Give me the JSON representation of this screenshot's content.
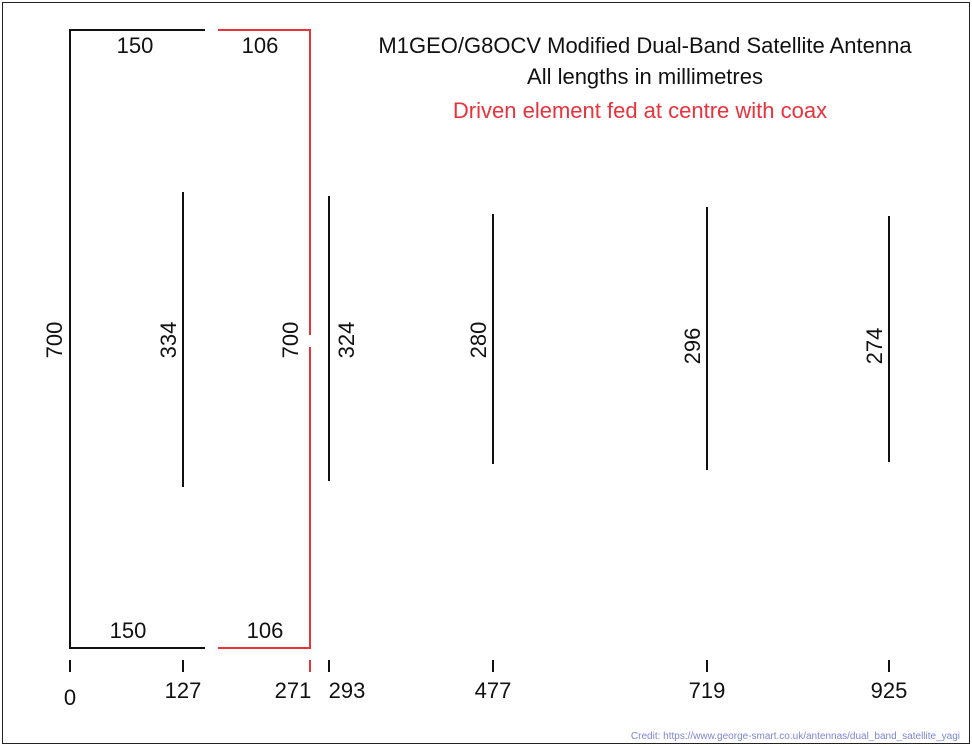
{
  "diagram": {
    "title": "M1GEO/G8OCV Modified Dual-Band Satellite Antenna",
    "subtitle": "All lengths in millimetres",
    "note": "Driven element fed at centre with coax",
    "credit": "Credit:  https://www.george-smart.co.uk/antennas/dual_band_satellite_yagi",
    "colors": {
      "reflector": "#111111",
      "driven": "#e8323c",
      "note_text": "#e8323c",
      "credit_text": "#7c86d6"
    },
    "reflector": {
      "height_label": "700",
      "top_width_label": "150",
      "bottom_width_label": "150"
    },
    "driven_element": {
      "height_label": "700",
      "top_width_label": "106",
      "bottom_width_label": "106"
    },
    "elements": [
      {
        "position_label": "127",
        "length_label": "334"
      },
      {
        "position_label": "293",
        "length_label": "324"
      },
      {
        "position_label": "477",
        "length_label": "280"
      },
      {
        "position_label": "719",
        "length_label": "296"
      },
      {
        "position_label": "925",
        "length_label": "274"
      }
    ],
    "axis": {
      "zero_label": "0",
      "driven_position_label": "271"
    }
  }
}
